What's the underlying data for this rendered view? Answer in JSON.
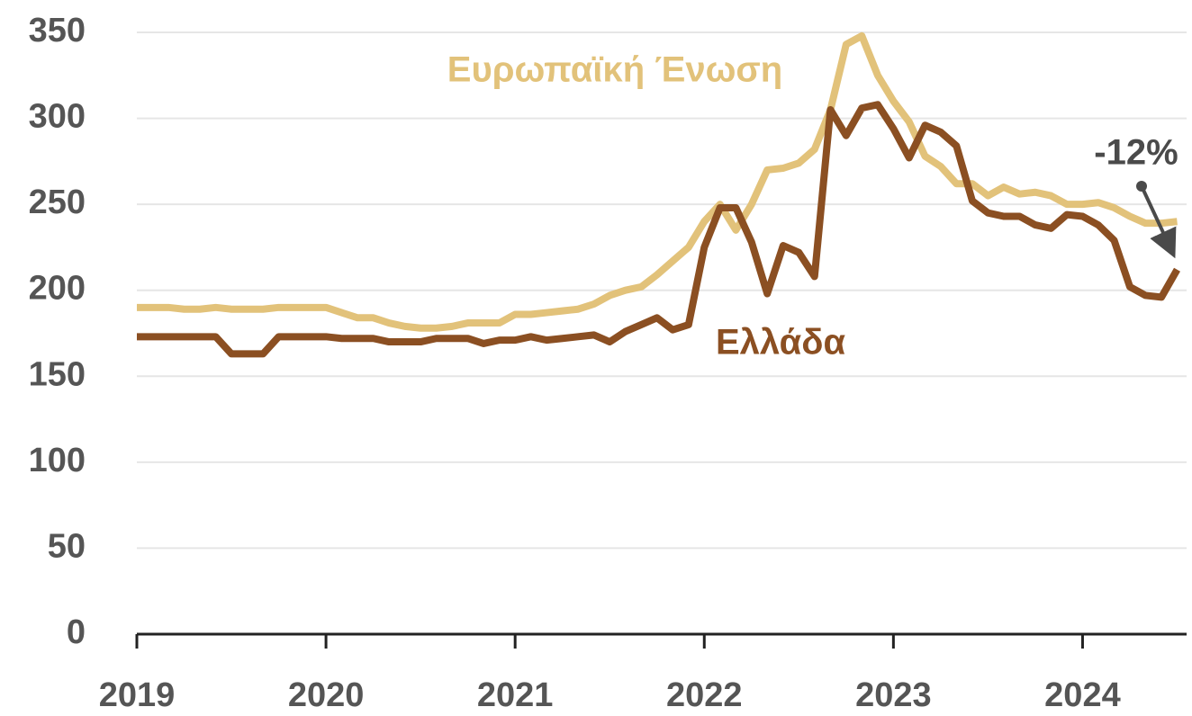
{
  "chart_data": {
    "type": "line",
    "x": [
      2019.0,
      2019.083,
      2019.167,
      2019.25,
      2019.333,
      2019.417,
      2019.5,
      2019.583,
      2019.667,
      2019.75,
      2019.833,
      2019.917,
      2020.0,
      2020.083,
      2020.167,
      2020.25,
      2020.333,
      2020.417,
      2020.5,
      2020.583,
      2020.667,
      2020.75,
      2020.833,
      2020.917,
      2021.0,
      2021.083,
      2021.167,
      2021.25,
      2021.333,
      2021.417,
      2021.5,
      2021.583,
      2021.667,
      2021.75,
      2021.833,
      2021.917,
      2022.0,
      2022.083,
      2022.167,
      2022.25,
      2022.333,
      2022.417,
      2022.5,
      2022.583,
      2022.667,
      2022.75,
      2022.833,
      2022.917,
      2023.0,
      2023.083,
      2023.167,
      2023.25,
      2023.333,
      2023.417,
      2023.5,
      2023.583,
      2023.667,
      2023.75,
      2023.833,
      2023.917,
      2024.0,
      2024.083,
      2024.167,
      2024.25,
      2024.333,
      2024.417,
      2024.5
    ],
    "series": [
      {
        "name": "Ευρωπαϊκή Ένωση",
        "color": "#e2c27a",
        "values": [
          190,
          190,
          190,
          189,
          189,
          190,
          189,
          189,
          189,
          190,
          190,
          190,
          190,
          187,
          184,
          184,
          181,
          179,
          178,
          178,
          179,
          181,
          181,
          181,
          186,
          186,
          187,
          188,
          189,
          192,
          197,
          200,
          202,
          209,
          217,
          225,
          240,
          250,
          235,
          250,
          270,
          271,
          274,
          282,
          305,
          343,
          348,
          325,
          310,
          298,
          278,
          272,
          262,
          262,
          255,
          260,
          256,
          257,
          255,
          250,
          250,
          251,
          248,
          243,
          239,
          239,
          240
        ]
      },
      {
        "name": "Ελλάδα",
        "color": "#8b4f22",
        "values": [
          173,
          173,
          173,
          173,
          173,
          173,
          163,
          163,
          163,
          173,
          173,
          173,
          173,
          172,
          172,
          172,
          170,
          170,
          170,
          172,
          172,
          172,
          169,
          171,
          171,
          173,
          171,
          172,
          173,
          174,
          170,
          176,
          180,
          184,
          177,
          180,
          225,
          248,
          248,
          228,
          198,
          226,
          222,
          208,
          305,
          290,
          306,
          308,
          294,
          277,
          296,
          292,
          284,
          252,
          245,
          243,
          243,
          238,
          236,
          244,
          243,
          238,
          229,
          202,
          197,
          196,
          212
        ]
      }
    ],
    "annotation": "-12%",
    "xlim": [
      2019,
      2024.55
    ],
    "xticks": [
      2019,
      2020,
      2021,
      2022,
      2023,
      2024
    ],
    "ylim": [
      0,
      350
    ],
    "yticks": [
      0,
      50,
      100,
      150,
      200,
      250,
      300,
      350
    ],
    "grid": true
  }
}
